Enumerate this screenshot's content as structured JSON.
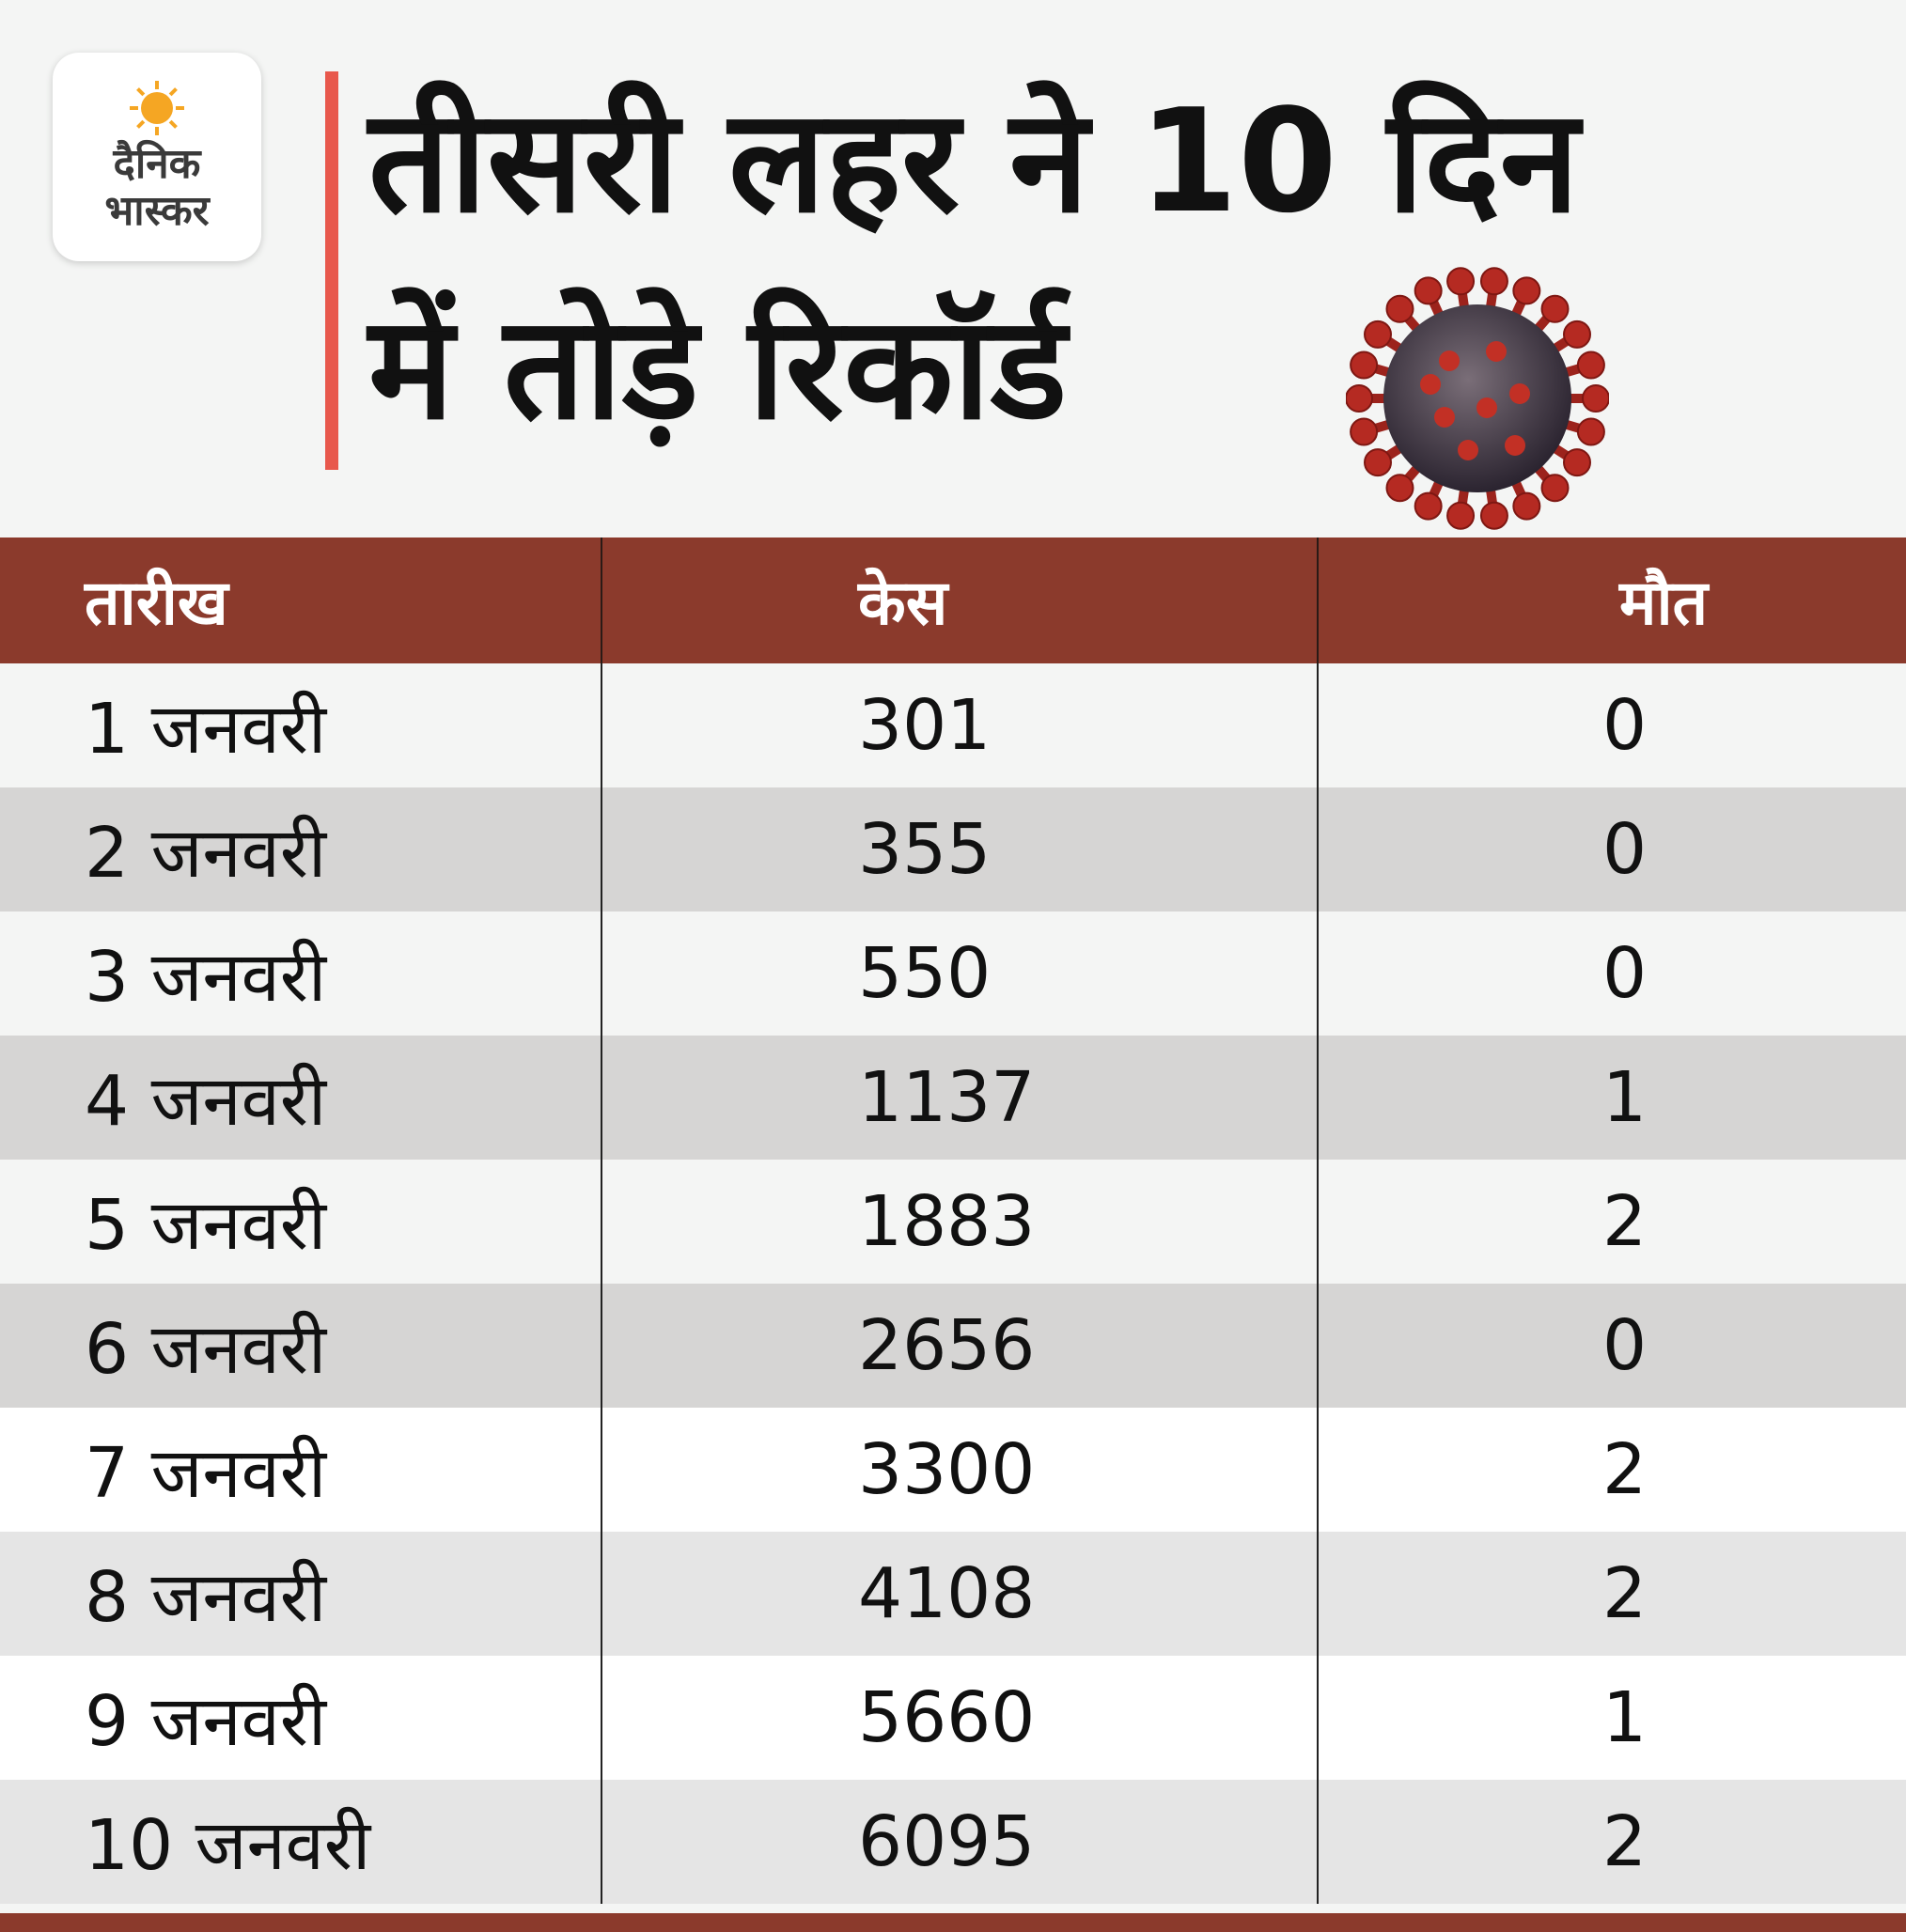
{
  "logo": {
    "line1": "दैनिक",
    "line2": "भास्कर"
  },
  "headline": {
    "line1": "तीसरी लहर ने 10 दिन",
    "line2": "में तोड़े रिकॉर्ड"
  },
  "colors": {
    "header_bg": "#8b3a2c",
    "accent": "#e8584c",
    "logo_sun": "#f5a623"
  },
  "icons": {
    "logo": "sun-icon",
    "illustration": "virus-icon"
  },
  "table": {
    "headers": [
      "तारीख",
      "केस",
      "मौत"
    ],
    "rows": [
      {
        "date": "1 जनवरी",
        "cases": "301",
        "deaths": "0"
      },
      {
        "date": "2 जनवरी",
        "cases": "355",
        "deaths": "0"
      },
      {
        "date": "3 जनवरी",
        "cases": "550",
        "deaths": "0"
      },
      {
        "date": "4 जनवरी",
        "cases": "1137",
        "deaths": "1"
      },
      {
        "date": "5 जनवरी",
        "cases": "1883",
        "deaths": "2"
      },
      {
        "date": "6 जनवरी",
        "cases": "2656",
        "deaths": "0"
      },
      {
        "date": "7 जनवरी",
        "cases": "3300",
        "deaths": "2"
      },
      {
        "date": "8 जनवरी",
        "cases": "4108",
        "deaths": "2"
      },
      {
        "date": "9 जनवरी",
        "cases": "5660",
        "deaths": "1"
      },
      {
        "date": "10 जनवरी",
        "cases": "6095",
        "deaths": "2"
      }
    ]
  }
}
